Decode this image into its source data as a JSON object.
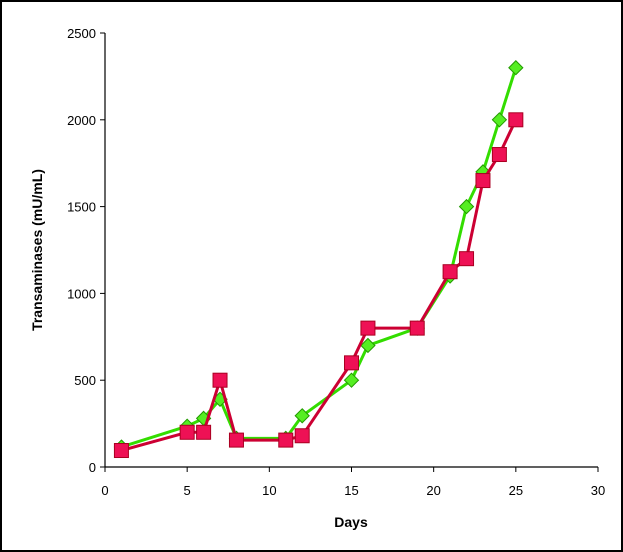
{
  "chart_data": {
    "type": "line",
    "title": "",
    "xlabel": "Days",
    "ylabel": "Transaminases (mU/mL)",
    "xlim": [
      0,
      30
    ],
    "ylim": [
      0,
      2500
    ],
    "x_ticks": [
      0,
      5,
      10,
      15,
      20,
      25,
      30
    ],
    "y_ticks": [
      0,
      500,
      1000,
      1500,
      2000,
      2500
    ],
    "grid": false,
    "legend": "none",
    "series": [
      {
        "color": "#33dd00",
        "marker": "diamond",
        "marker_color": "#55ee22",
        "points": [
          {
            "x": 1,
            "y": 115
          },
          {
            "x": 5,
            "y": 235
          },
          {
            "x": 6,
            "y": 280
          },
          {
            "x": 7,
            "y": 390
          },
          {
            "x": 8,
            "y": 165
          },
          {
            "x": 11,
            "y": 165
          },
          {
            "x": 12,
            "y": 295
          },
          {
            "x": 15,
            "y": 500
          },
          {
            "x": 16,
            "y": 700
          },
          {
            "x": 19,
            "y": 800
          },
          {
            "x": 21,
            "y": 1100
          },
          {
            "x": 22,
            "y": 1500
          },
          {
            "x": 23,
            "y": 1700
          },
          {
            "x": 24,
            "y": 2000
          },
          {
            "x": 25,
            "y": 2300
          }
        ]
      },
      {
        "color": "#cc0033",
        "marker": "square",
        "marker_color": "#ee1155",
        "points": [
          {
            "x": 1,
            "y": 95
          },
          {
            "x": 5,
            "y": 200
          },
          {
            "x": 6,
            "y": 200
          },
          {
            "x": 7,
            "y": 500
          },
          {
            "x": 8,
            "y": 155
          },
          {
            "x": 11,
            "y": 155
          },
          {
            "x": 12,
            "y": 180
          },
          {
            "x": 15,
            "y": 600
          },
          {
            "x": 16,
            "y": 800
          },
          {
            "x": 19,
            "y": 800
          },
          {
            "x": 21,
            "y": 1125
          },
          {
            "x": 22,
            "y": 1200
          },
          {
            "x": 23,
            "y": 1650
          },
          {
            "x": 24,
            "y": 1800
          },
          {
            "x": 25,
            "y": 2000
          }
        ]
      }
    ]
  }
}
